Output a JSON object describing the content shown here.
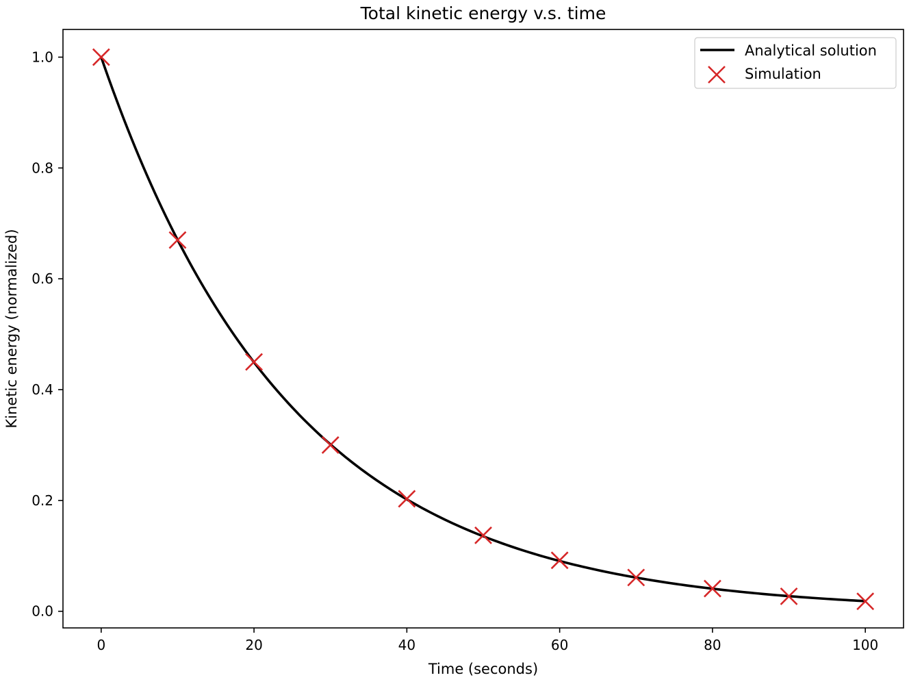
{
  "chart_data": {
    "type": "line",
    "title": "Total kinetic energy v.s. time",
    "xlabel": "Time (seconds)",
    "ylabel": "Kinetic energy (normalized)",
    "xlim": [
      -5,
      105
    ],
    "ylim": [
      -0.03,
      1.05
    ],
    "x_ticks": [
      0,
      20,
      40,
      60,
      80,
      100
    ],
    "y_ticks": [
      0.0,
      0.2,
      0.4,
      0.6,
      0.8,
      1.0
    ],
    "x_tick_labels": [
      "0",
      "20",
      "40",
      "60",
      "80",
      "100"
    ],
    "y_tick_labels": [
      "0.0",
      "0.2",
      "0.4",
      "0.6",
      "0.8",
      "1.0"
    ],
    "grid": false,
    "legend_position": "top-right",
    "series": [
      {
        "name": "Analytical solution",
        "kind": "line",
        "color": "#000000",
        "function": "exp(-0.04*t)",
        "x_range": [
          0,
          100
        ],
        "samples": 201
      },
      {
        "name": "Simulation",
        "kind": "scatter",
        "marker": "x",
        "color": "#d62728",
        "x": [
          0,
          10,
          20,
          30,
          40,
          50,
          60,
          70,
          80,
          90,
          100
        ],
        "y": [
          1.0,
          0.67,
          0.45,
          0.3,
          0.203,
          0.137,
          0.092,
          0.061,
          0.041,
          0.027,
          0.018
        ]
      }
    ]
  }
}
